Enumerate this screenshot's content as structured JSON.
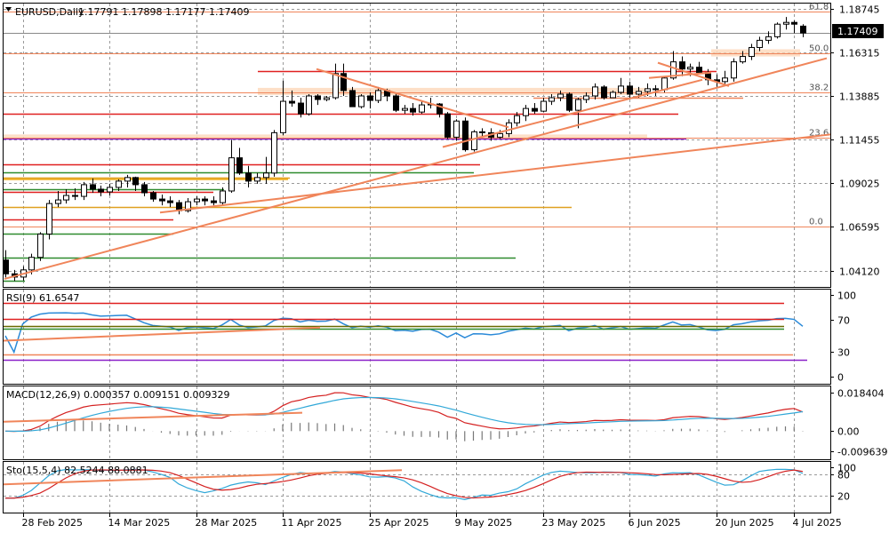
{
  "title_bar": {
    "symbol_tf": "EURUSD,Daily",
    "ohlc": "1.17791 1.17898 1.17177 1.17409"
  },
  "price_axis": {
    "ticks": [
      "1.18745",
      "1.16315",
      "1.13885",
      "1.11455",
      "1.09025",
      "1.06595",
      "1.04120"
    ],
    "current_price": "1.17409"
  },
  "fibonacci": [
    {
      "label": "61.8",
      "price": 1.1862
    },
    {
      "label": "50.0",
      "price": 1.163
    },
    {
      "label": "38.2",
      "price": 1.141
    },
    {
      "label": "23.6",
      "price": 1.1159
    },
    {
      "label": "0.0",
      "price": 1.0662
    }
  ],
  "x_axis": {
    "ticks": [
      "28 Feb 2025",
      "14 Mar 2025",
      "28 Mar 2025",
      "11 Apr 2025",
      "25 Apr 2025",
      "9 May 2025",
      "23 May 2025",
      "6 Jun 2025",
      "20 Jun 2025",
      "4 Jul 2025"
    ]
  },
  "rsi": {
    "label": "RSI(9) 61.6547",
    "ticks": [
      "100",
      "70",
      "30",
      "0"
    ]
  },
  "macd": {
    "label": "MACD(12,26,9) 0.000357 0.009151 0.009329",
    "ticks": [
      "0.018404",
      "0.00",
      "-0.009639"
    ]
  },
  "stoch": {
    "label": "Sto(15,5,4) 82.5244 88.0881",
    "ticks": [
      "100",
      "80",
      "20"
    ]
  },
  "colors": {
    "bull_body": "#ffffff",
    "bear_body": "#000000",
    "trendline": "#f0855a",
    "fib_line": "#f0855a",
    "rsi_line": "#2b8ad8",
    "macd_main": "#d42020",
    "macd_signal": "#31a8d8",
    "resistance": "#e02020",
    "support": "#2e8b2e",
    "purple": "#8a20c8",
    "zone": "#fcd4b4"
  },
  "chart_data": {
    "type": "candlestick",
    "symbol": "EURUSD",
    "timeframe": "Daily",
    "last_bar": {
      "open": 1.17791,
      "high": 1.17898,
      "low": 1.17177,
      "close": 1.17409
    },
    "x": [
      "2025-02-26",
      "2025-02-27",
      "2025-02-28",
      "2025-03-03",
      "2025-03-04",
      "2025-03-05",
      "2025-03-06",
      "2025-03-07",
      "2025-03-10",
      "2025-03-11",
      "2025-03-12",
      "2025-03-13",
      "2025-03-14",
      "2025-03-17",
      "2025-03-18",
      "2025-03-19",
      "2025-03-20",
      "2025-03-21",
      "2025-03-24",
      "2025-03-25",
      "2025-03-26",
      "2025-03-27",
      "2025-03-28",
      "2025-03-31",
      "2025-04-01",
      "2025-04-02",
      "2025-04-03",
      "2025-04-04",
      "2025-04-07",
      "2025-04-08",
      "2025-04-09",
      "2025-04-10",
      "2025-04-11",
      "2025-04-14",
      "2025-04-15",
      "2025-04-16",
      "2025-04-17",
      "2025-04-18",
      "2025-04-21",
      "2025-04-22",
      "2025-04-23",
      "2025-04-24",
      "2025-04-25",
      "2025-04-28",
      "2025-04-29",
      "2025-04-30",
      "2025-05-01",
      "2025-05-02",
      "2025-05-05",
      "2025-05-06",
      "2025-05-07",
      "2025-05-08",
      "2025-05-09",
      "2025-05-12",
      "2025-05-13",
      "2025-05-14",
      "2025-05-15",
      "2025-05-16",
      "2025-05-19",
      "2025-05-20",
      "2025-05-21",
      "2025-05-22",
      "2025-05-23",
      "2025-05-26",
      "2025-05-27",
      "2025-05-28",
      "2025-05-29",
      "2025-05-30",
      "2025-06-02",
      "2025-06-03",
      "2025-06-04",
      "2025-06-05",
      "2025-06-06",
      "2025-06-09",
      "2025-06-10",
      "2025-06-11",
      "2025-06-12",
      "2025-06-13",
      "2025-06-16",
      "2025-06-17",
      "2025-06-18",
      "2025-06-19",
      "2025-06-20",
      "2025-06-23",
      "2025-06-24",
      "2025-06-25",
      "2025-06-26",
      "2025-06-27",
      "2025-06-30",
      "2025-07-01",
      "2025-07-02",
      "2025-07-03",
      "2025-07-04"
    ],
    "ohlc": [
      [
        1.0475,
        1.053,
        1.0378,
        1.0398
      ],
      [
        1.0398,
        1.042,
        1.0358,
        1.038
      ],
      [
        1.038,
        1.044,
        1.036,
        1.042
      ],
      [
        1.042,
        1.051,
        1.0395,
        1.049
      ],
      [
        1.049,
        1.063,
        1.047,
        1.062
      ],
      [
        1.062,
        1.081,
        1.059,
        1.079
      ],
      [
        1.079,
        1.086,
        1.077,
        1.081
      ],
      [
        1.081,
        1.087,
        1.079,
        1.0835
      ],
      [
        1.0835,
        1.0875,
        1.081,
        1.083
      ],
      [
        1.083,
        1.091,
        1.081,
        1.0895
      ],
      [
        1.0895,
        1.093,
        1.085,
        1.087
      ],
      [
        1.087,
        1.089,
        1.083,
        1.0855
      ],
      [
        1.0855,
        1.09,
        1.0835,
        1.088
      ],
      [
        1.088,
        1.0925,
        1.086,
        1.0915
      ],
      [
        1.0915,
        1.095,
        1.088,
        1.0935
      ],
      [
        1.0935,
        1.094,
        1.086,
        1.0895
      ],
      [
        1.0895,
        1.091,
        1.083,
        1.085
      ],
      [
        1.085,
        1.086,
        1.08,
        1.0815
      ],
      [
        1.0815,
        1.084,
        1.078,
        1.0805
      ],
      [
        1.0805,
        1.083,
        1.077,
        1.0795
      ],
      [
        1.0795,
        1.081,
        1.073,
        1.075
      ],
      [
        1.075,
        1.082,
        1.074,
        1.08
      ],
      [
        1.08,
        1.083,
        1.078,
        1.0815
      ],
      [
        1.0815,
        1.083,
        1.078,
        1.0805
      ],
      [
        1.0805,
        1.083,
        1.078,
        1.0795
      ],
      [
        1.0795,
        1.088,
        1.078,
        1.086
      ],
      [
        1.086,
        1.1145,
        1.085,
        1.1045
      ],
      [
        1.1045,
        1.11,
        1.095,
        1.096
      ],
      [
        1.096,
        1.1,
        1.088,
        1.0915
      ],
      [
        1.0915,
        1.096,
        1.09,
        1.0935
      ],
      [
        1.0935,
        1.105,
        1.09,
        1.096
      ],
      [
        1.096,
        1.12,
        1.094,
        1.1185
      ],
      [
        1.1185,
        1.1475,
        1.117,
        1.136
      ],
      [
        1.136,
        1.142,
        1.133,
        1.135
      ],
      [
        1.135,
        1.138,
        1.127,
        1.129
      ],
      [
        1.129,
        1.14,
        1.128,
        1.139
      ],
      [
        1.139,
        1.14,
        1.134,
        1.137
      ],
      [
        1.137,
        1.139,
        1.136,
        1.138
      ],
      [
        1.138,
        1.157,
        1.137,
        1.1515
      ],
      [
        1.1515,
        1.157,
        1.139,
        1.142
      ],
      [
        1.142,
        1.144,
        1.133,
        1.133
      ],
      [
        1.133,
        1.14,
        1.132,
        1.139
      ],
      [
        1.139,
        1.141,
        1.132,
        1.1365
      ],
      [
        1.1365,
        1.144,
        1.135,
        1.142
      ],
      [
        1.142,
        1.143,
        1.136,
        1.139
      ],
      [
        1.139,
        1.141,
        1.13,
        1.131
      ],
      [
        1.131,
        1.134,
        1.129,
        1.132
      ],
      [
        1.132,
        1.135,
        1.128,
        1.13
      ],
      [
        1.13,
        1.136,
        1.129,
        1.134
      ],
      [
        1.134,
        1.138,
        1.132,
        1.1345
      ],
      [
        1.1345,
        1.135,
        1.127,
        1.129
      ],
      [
        1.129,
        1.13,
        1.115,
        1.116
      ],
      [
        1.116,
        1.126,
        1.114,
        1.125
      ],
      [
        1.125,
        1.127,
        1.108,
        1.109
      ],
      [
        1.109,
        1.12,
        1.108,
        1.119
      ],
      [
        1.119,
        1.121,
        1.116,
        1.1185
      ],
      [
        1.1185,
        1.121,
        1.114,
        1.116
      ],
      [
        1.116,
        1.12,
        1.115,
        1.118
      ],
      [
        1.118,
        1.126,
        1.116,
        1.124
      ],
      [
        1.124,
        1.13,
        1.122,
        1.128
      ],
      [
        1.128,
        1.134,
        1.125,
        1.132
      ],
      [
        1.132,
        1.135,
        1.129,
        1.1305
      ],
      [
        1.1305,
        1.138,
        1.13,
        1.136
      ],
      [
        1.136,
        1.14,
        1.134,
        1.138
      ],
      [
        1.138,
        1.142,
        1.136,
        1.14
      ],
      [
        1.14,
        1.141,
        1.13,
        1.131
      ],
      [
        1.131,
        1.138,
        1.121,
        1.137
      ],
      [
        1.137,
        1.141,
        1.135,
        1.139
      ],
      [
        1.139,
        1.146,
        1.137,
        1.144
      ],
      [
        1.144,
        1.145,
        1.137,
        1.138
      ],
      [
        1.138,
        1.142,
        1.138,
        1.141
      ],
      [
        1.141,
        1.149,
        1.14,
        1.1445
      ],
      [
        1.1445,
        1.147,
        1.138,
        1.14
      ],
      [
        1.14,
        1.144,
        1.138,
        1.1415
      ],
      [
        1.1415,
        1.146,
        1.139,
        1.143
      ],
      [
        1.143,
        1.145,
        1.139,
        1.1425
      ],
      [
        1.1425,
        1.15,
        1.141,
        1.149
      ],
      [
        1.149,
        1.164,
        1.148,
        1.158
      ],
      [
        1.158,
        1.161,
        1.15,
        1.154
      ],
      [
        1.154,
        1.157,
        1.15,
        1.155
      ],
      [
        1.155,
        1.158,
        1.151,
        1.152
      ],
      [
        1.152,
        1.154,
        1.145,
        1.148
      ],
      [
        1.148,
        1.151,
        1.144,
        1.147
      ],
      [
        1.147,
        1.153,
        1.145,
        1.149
      ],
      [
        1.149,
        1.16,
        1.147,
        1.158
      ],
      [
        1.158,
        1.164,
        1.157,
        1.161
      ],
      [
        1.161,
        1.168,
        1.159,
        1.166
      ],
      [
        1.166,
        1.172,
        1.164,
        1.17
      ],
      [
        1.17,
        1.175,
        1.168,
        1.172
      ],
      [
        1.172,
        1.18,
        1.171,
        1.179
      ],
      [
        1.179,
        1.183,
        1.176,
        1.18
      ],
      [
        1.18,
        1.181,
        1.174,
        1.179
      ],
      [
        1.17791,
        1.17898,
        1.17177,
        1.17409
      ]
    ],
    "rsi_last": 61.6547,
    "macd_last": {
      "histogram": 0.000357,
      "main": 0.009151,
      "signal": 0.009329
    },
    "stochastic_last": {
      "k": 82.5244,
      "d": 88.0881
    }
  }
}
